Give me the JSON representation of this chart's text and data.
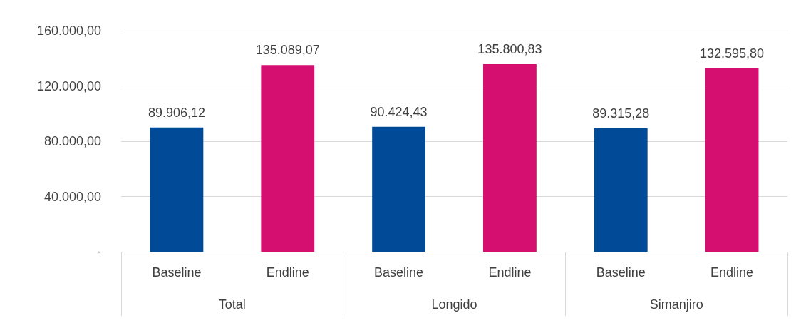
{
  "chart_data": {
    "type": "bar",
    "categories": [
      "Baseline",
      "Endline",
      "Baseline",
      "Endline",
      "Baseline",
      "Endline"
    ],
    "values": [
      89906.12,
      135089.07,
      90424.43,
      135800.83,
      89315.28,
      132595.8
    ],
    "colors": [
      "#004a97",
      "#d50f6f",
      "#004a97",
      "#d50f6f",
      "#004a97",
      "#d50f6f"
    ],
    "value_labels": [
      "89.906,12",
      "135.089,07",
      "90.424,43",
      "135.800,83",
      "89.315,28",
      "132.595,80"
    ],
    "annotations": [
      "Total",
      "Longido",
      "Simanjiro"
    ],
    "ylim": [
      0,
      160000
    ],
    "yticks": [
      {
        "value": 0,
        "label": "-"
      },
      {
        "value": 40000,
        "label": "40.000,00"
      },
      {
        "value": 80000,
        "label": "80.000,00"
      },
      {
        "value": 120000,
        "label": "120.000,00"
      },
      {
        "value": 160000,
        "label": "160.000,00"
      }
    ],
    "grid": "y"
  }
}
